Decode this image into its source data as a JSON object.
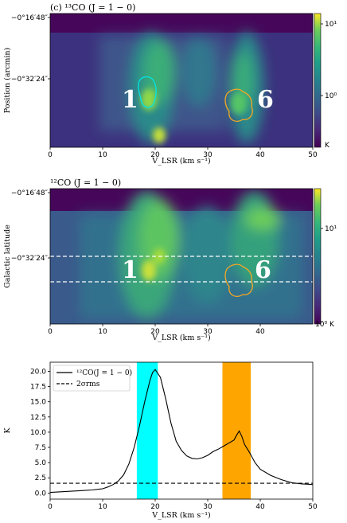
{
  "chart_data": [
    {
      "type": "heatmap",
      "title": "(c) ¹³CO (J = 1 − 0)",
      "xlabel": "V_LSR (km s⁻¹)",
      "ylabel": "Position (arcmin)",
      "xlim": [
        0,
        50
      ],
      "x_ticks": [
        "0",
        "10",
        "20",
        "30",
        "40",
        "50"
      ],
      "y_ticks": [
        "−0°16′48″",
        "−0°32′24″"
      ],
      "colorbar": {
        "scale": "log",
        "ticks": [
          "10⁰",
          "10¹"
        ],
        "unit": "K"
      },
      "annotations": [
        "1",
        "6"
      ],
      "contours": [
        {
          "region": "1",
          "color": "#00e5e5"
        },
        {
          "region": "6",
          "color": "#f5a623"
        }
      ]
    },
    {
      "type": "heatmap",
      "title": "¹²CO (J = 1 − 0)",
      "xlabel": "V_LSR (km s⁻¹)",
      "ylabel": "Galactic latitude",
      "xlim": [
        0,
        50
      ],
      "x_ticks": [
        "0",
        "10",
        "20",
        "30",
        "40"
      ],
      "y_ticks": [
        "−0°16′48″",
        "−0°32′24″"
      ],
      "colorbar": {
        "scale": "log",
        "ticks": [
          "10⁰",
          "10¹"
        ],
        "unit": "K"
      },
      "annotations": [
        "1",
        "6"
      ],
      "contours": [
        {
          "region": "6",
          "color": "#f5a623"
        }
      ]
    },
    {
      "type": "line",
      "xlabel": "V_LSR (km s⁻¹)",
      "ylabel": "K",
      "xlim": [
        0,
        50
      ],
      "ylim": [
        -1.0,
        21.5
      ],
      "x_ticks": [
        0,
        10,
        20,
        30,
        40,
        50
      ],
      "y_ticks": [
        0.0,
        2.5,
        5.0,
        7.5,
        10.0,
        12.5,
        15.0,
        17.5,
        20.0
      ],
      "legend_position": "top-left",
      "series": [
        {
          "name": "¹²CO(J = 1 − 0)",
          "style": "solid",
          "x": [
            0,
            2,
            4,
            6,
            8,
            10,
            11,
            12,
            13,
            14,
            15,
            16,
            17,
            18,
            19,
            19.5,
            20,
            21,
            22,
            23,
            24,
            25,
            26,
            27,
            28,
            29,
            30,
            31,
            32,
            33,
            34,
            35,
            35.5,
            36,
            36.5,
            37,
            38,
            39,
            40,
            42,
            44,
            46,
            48,
            50
          ],
          "y": [
            0.1,
            0.2,
            0.3,
            0.4,
            0.5,
            0.7,
            1.0,
            1.4,
            2.0,
            3.0,
            4.8,
            7.5,
            11.0,
            15.0,
            18.5,
            19.8,
            20.3,
            19.0,
            15.5,
            11.5,
            8.5,
            7.0,
            6.1,
            5.7,
            5.6,
            5.8,
            6.2,
            6.8,
            7.2,
            7.7,
            8.2,
            8.7,
            9.5,
            10.2,
            9.3,
            8.0,
            6.6,
            5.0,
            3.9,
            2.9,
            2.2,
            1.7,
            1.5,
            1.4
          ]
        },
        {
          "name": "2σrms",
          "style": "dashed",
          "x": [
            0,
            50
          ],
          "y": [
            1.6,
            1.6
          ]
        }
      ],
      "bands": [
        {
          "xmin": 16.5,
          "xmax": 20.5,
          "color": "#00ffff"
        },
        {
          "xmin": 32.8,
          "xmax": 38.2,
          "color": "#ffa500"
        }
      ]
    }
  ]
}
